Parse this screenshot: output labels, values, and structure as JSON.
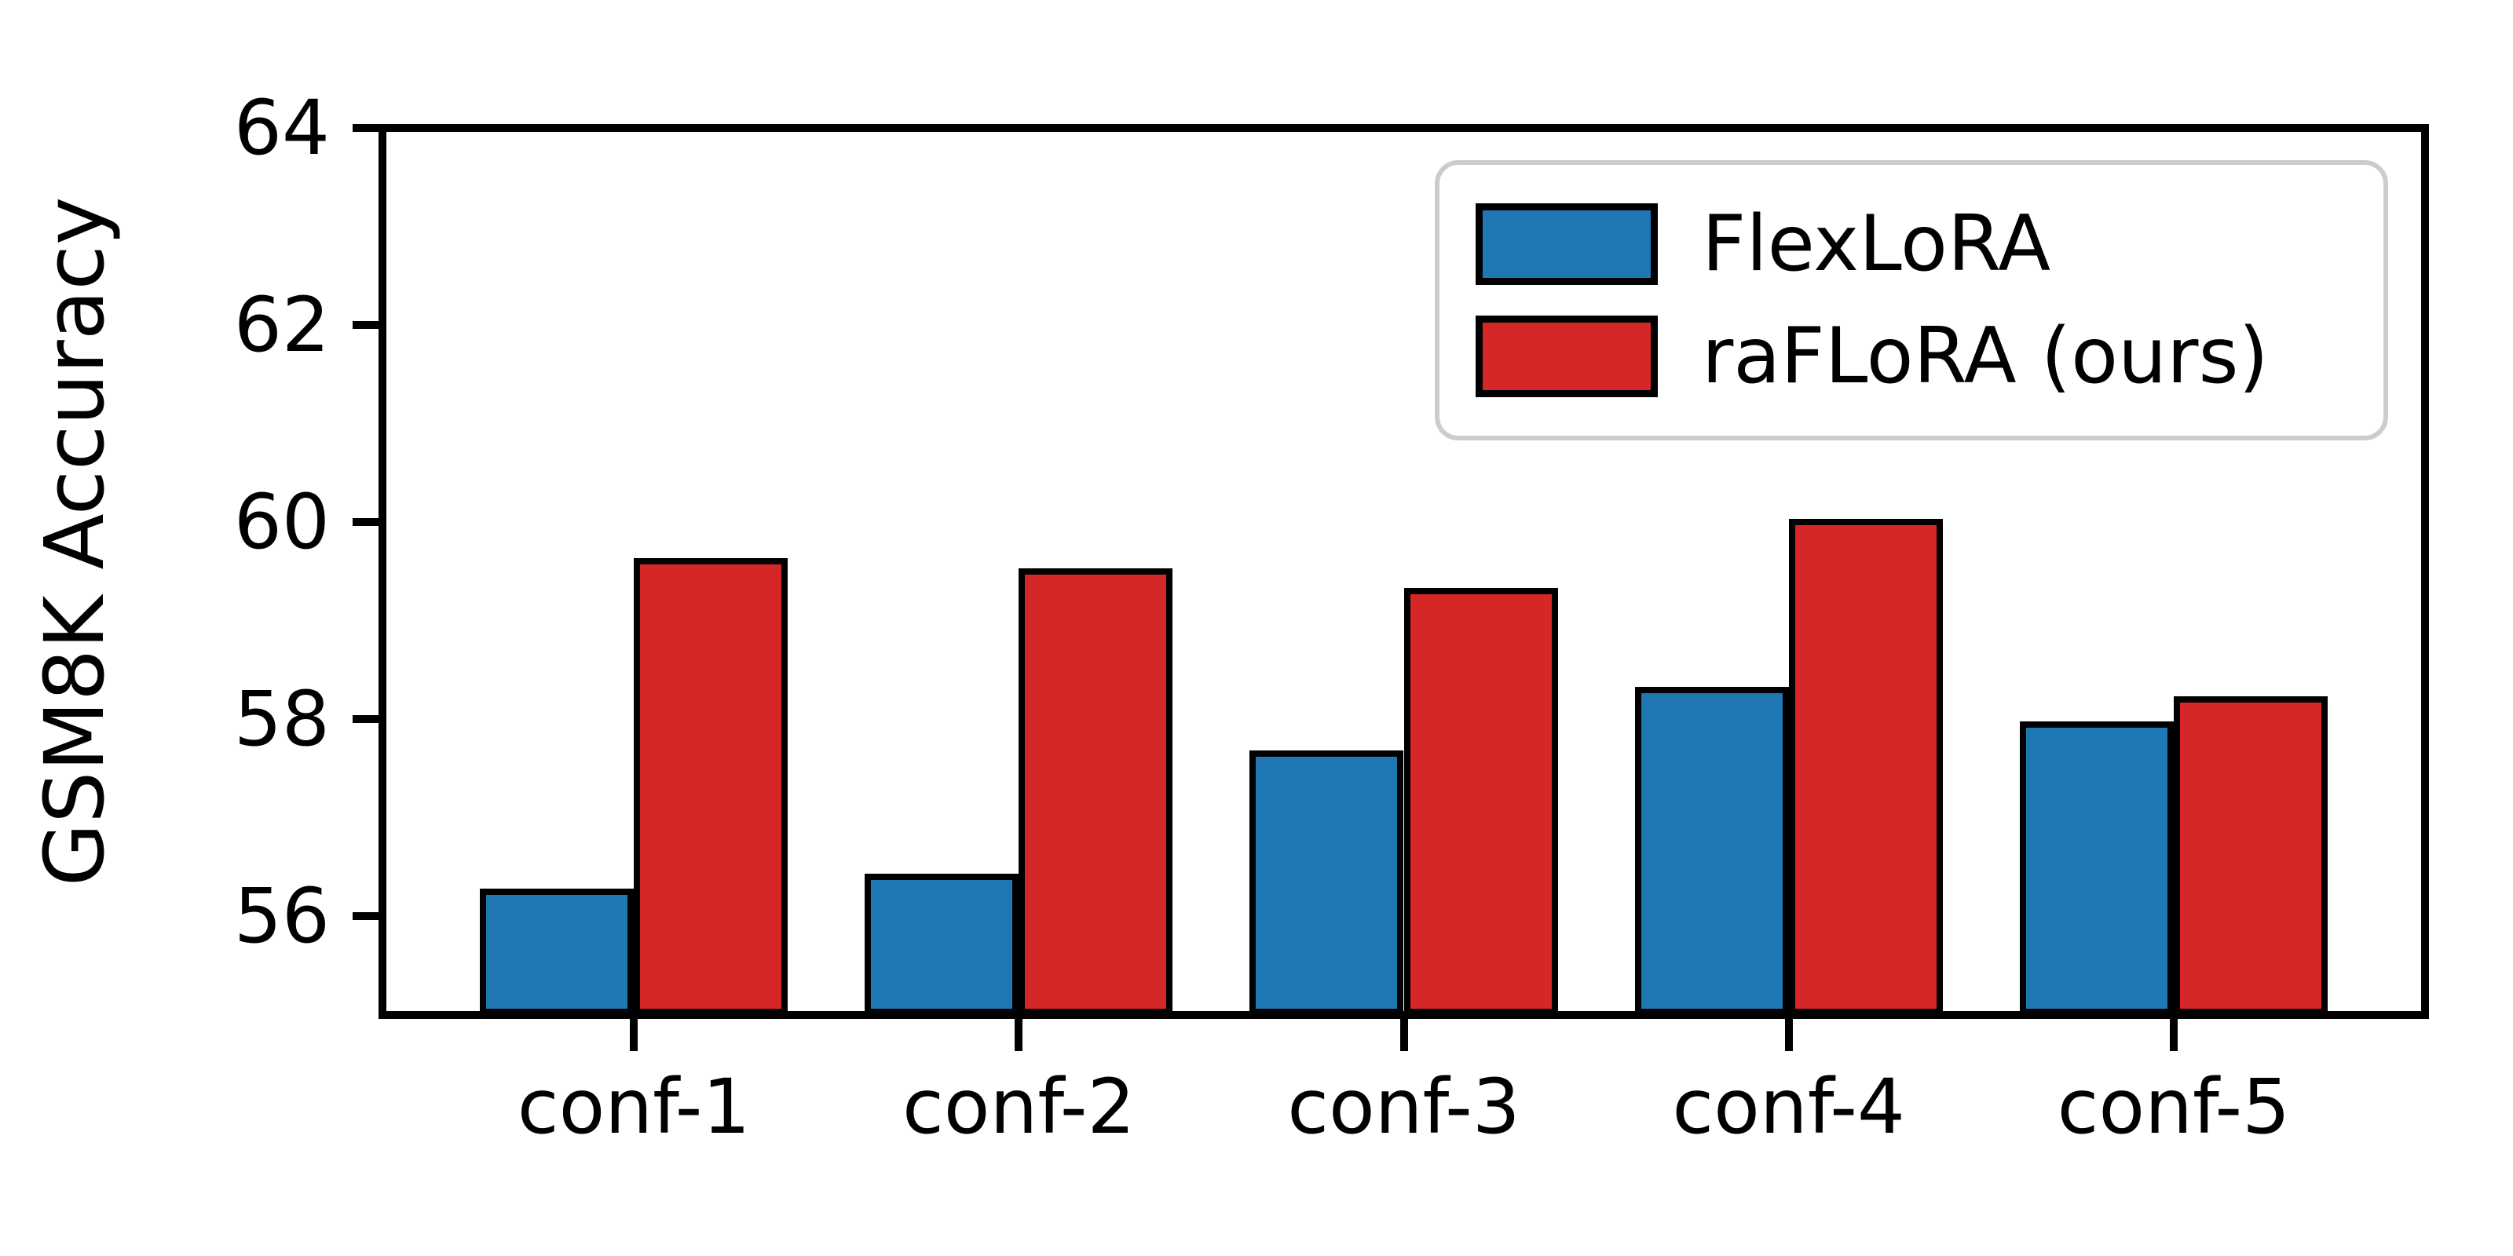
{
  "chart_data": {
    "type": "bar",
    "title": "",
    "xlabel": "",
    "ylabel": "GSM8K Accuracy",
    "categories": [
      "conf-1",
      "conf-2",
      "conf-3",
      "conf-4",
      "conf-5"
    ],
    "series": [
      {
        "name": "FlexLoRA",
        "color": "#1f77b4",
        "values": [
          56.25,
          56.4,
          57.65,
          58.3,
          57.95
        ]
      },
      {
        "name": "raFLoRA (ours)",
        "color": "#d62728",
        "values": [
          59.6,
          59.5,
          59.3,
          60.0,
          58.2
        ]
      }
    ],
    "ylim": [
      55,
      64
    ],
    "yticks": [
      56,
      58,
      60,
      62,
      64
    ],
    "grid": false,
    "legend_position": "upper right",
    "bar_edge_color": "#000000",
    "axis_color": "#000000",
    "legend_border_color": "#cccccc",
    "background_color": "#ffffff"
  }
}
